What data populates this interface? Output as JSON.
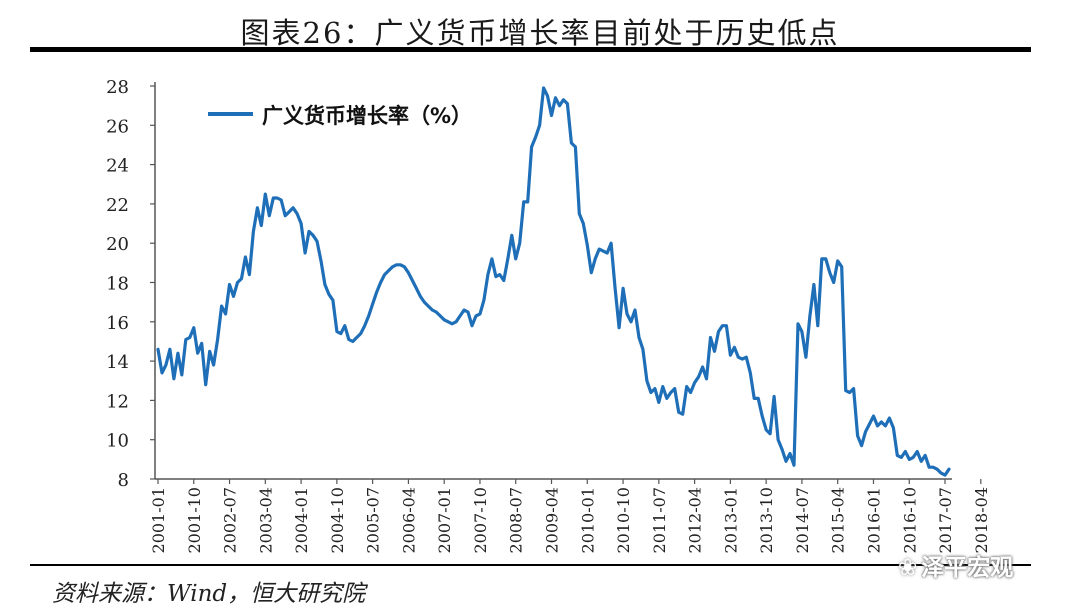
{
  "title": "图表26：广义货币增长率目前处于历史低点",
  "source": "资料来源：Wind，恒大研究院",
  "watermark": "泽平宏观",
  "colors": {
    "line": "#1f6fb8",
    "axis": "#555555"
  },
  "chart_data": {
    "type": "line",
    "title": "",
    "xlabel": "",
    "ylabel": "",
    "ylim": [
      8,
      28
    ],
    "yticks": [
      8,
      10,
      12,
      14,
      16,
      18,
      20,
      22,
      24,
      26,
      28
    ],
    "grid": false,
    "legend": "top-left",
    "xticks": [
      "2001-01",
      "2001-10",
      "2002-07",
      "2003-04",
      "2004-01",
      "2004-10",
      "2005-07",
      "2006-04",
      "2007-01",
      "2007-10",
      "2008-07",
      "2009-04",
      "2010-01",
      "2010-10",
      "2011-07",
      "2012-04",
      "2013-01",
      "2013-10",
      "2014-07",
      "2015-04",
      "2016-01",
      "2016-10",
      "2017-07",
      "2018-04"
    ],
    "series": [
      {
        "name": "广义货币增长率（%）",
        "x_start": "2001-01",
        "frequency": "monthly",
        "values": [
          14.6,
          13.4,
          13.8,
          14.6,
          13.1,
          14.4,
          13.3,
          15.1,
          15.2,
          15.7,
          14.4,
          14.9,
          12.8,
          14.5,
          13.8,
          15.1,
          16.8,
          16.4,
          17.9,
          17.3,
          18.0,
          18.2,
          19.3,
          18.4,
          20.6,
          21.8,
          20.9,
          22.5,
          21.4,
          22.3,
          22.3,
          22.2,
          21.4,
          21.6,
          21.8,
          21.5,
          21.0,
          19.5,
          20.6,
          20.4,
          20.1,
          19.1,
          17.9,
          17.4,
          17.1,
          15.5,
          15.4,
          15.8,
          15.1,
          15.0,
          15.2,
          15.4,
          15.8,
          16.3,
          16.9,
          17.5,
          18.0,
          18.4,
          18.6,
          18.8,
          18.9,
          18.9,
          18.8,
          18.5,
          18.1,
          17.7,
          17.3,
          17.0,
          16.8,
          16.6,
          16.5,
          16.3,
          16.1,
          16.0,
          15.9,
          16.0,
          16.3,
          16.6,
          16.5,
          15.8,
          16.3,
          16.4,
          17.1,
          18.4,
          19.2,
          18.3,
          18.4,
          18.1,
          19.2,
          20.4,
          19.2,
          20.0,
          22.1,
          22.1,
          24.9,
          25.4,
          26.0,
          27.9,
          27.5,
          26.5,
          27.4,
          27.0,
          27.3,
          27.1,
          25.1,
          24.9,
          21.5,
          21.0,
          19.9,
          18.5,
          19.2,
          19.7,
          19.6,
          19.5,
          20.0,
          17.7,
          15.7,
          17.7,
          16.4,
          16.0,
          16.6,
          15.2,
          14.6,
          13.0,
          12.4,
          12.6,
          11.9,
          12.7,
          12.1,
          12.4,
          12.6,
          11.4,
          11.3,
          12.7,
          12.4,
          12.9,
          13.2,
          13.7,
          13.1,
          15.2,
          14.5,
          15.5,
          15.8,
          15.8,
          14.3,
          14.7,
          14.2,
          14.1,
          14.2,
          13.4,
          12.1,
          12.1,
          11.2,
          10.5,
          10.3,
          12.2,
          10.0,
          9.5,
          8.9,
          9.3,
          8.7,
          15.9,
          15.5,
          14.2,
          16.3,
          17.9,
          15.8,
          19.2,
          19.2,
          18.5,
          18.0,
          19.1,
          18.8,
          12.5,
          12.4,
          12.6,
          10.2,
          9.7,
          10.4,
          10.8,
          11.2,
          10.7,
          10.9,
          10.7,
          11.1,
          10.6,
          9.2,
          9.1,
          9.4,
          9.0,
          9.1,
          9.4,
          8.9,
          9.2,
          8.6,
          8.6,
          8.5,
          8.3,
          8.2,
          8.5
        ]
      }
    ]
  }
}
